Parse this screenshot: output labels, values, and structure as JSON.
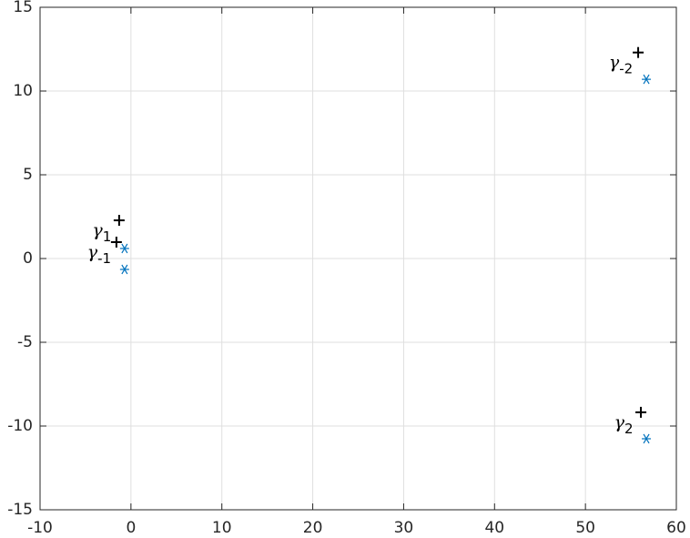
{
  "chart_data": {
    "type": "scatter",
    "xlim": [
      -10,
      60
    ],
    "xticks": [
      -10,
      0,
      10,
      20,
      30,
      40,
      50,
      60
    ],
    "ylim": [
      -15,
      15
    ],
    "yticks": [
      -15,
      -10,
      -5,
      0,
      5,
      10,
      15
    ],
    "grid": true,
    "series": [
      {
        "color": "#000000",
        "marker": "plus",
        "x": [
          55.8,
          -1.3,
          -1.6,
          56.1
        ],
        "values": [
          12.3,
          2.28,
          0.98,
          -9.18
        ],
        "point_labels": [
          {
            "base": "γ",
            "sub": "-2"
          },
          {
            "base": "γ",
            "sub": "1"
          },
          {
            "base": "γ",
            "sub": "-1"
          },
          {
            "base": "γ",
            "sub": "2"
          }
        ]
      },
      {
        "color": "#0072bd",
        "marker": "asterisk",
        "x": [
          56.7,
          -0.7,
          -0.7,
          56.7
        ],
        "values": [
          10.7,
          0.6,
          -0.65,
          -10.76
        ]
      }
    ]
  }
}
